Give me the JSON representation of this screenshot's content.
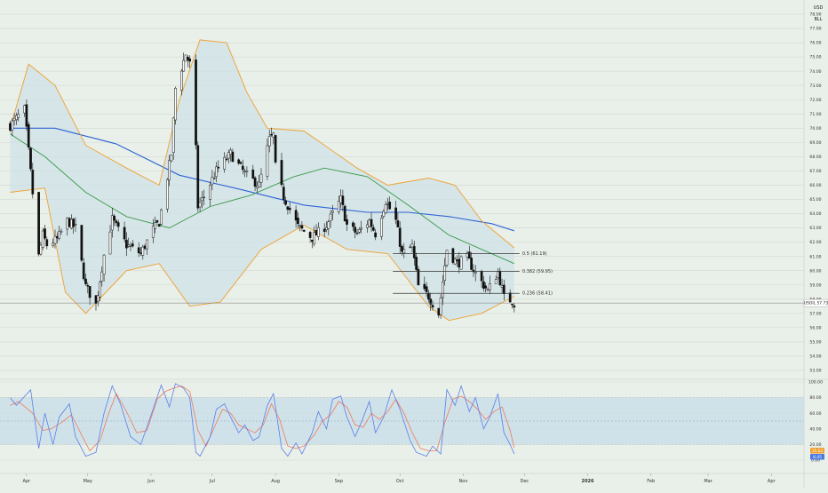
{
  "header": {
    "currency_label": "USD",
    "unit_label": "BLL"
  },
  "chart_data": [
    {
      "type": "candlestick",
      "instrument_label": "USOIL",
      "last_price": 57.73,
      "last_price_text": "57.73",
      "x_labels": [
        "Apr",
        "May",
        "Jun",
        "Jul",
        "Aug",
        "Sep",
        "Oct",
        "Nov",
        "Dec",
        "2026",
        "Feb",
        "Mar",
        "Apr"
      ],
      "x_range": [
        "2025-04-01",
        "2026-04-01"
      ],
      "x_label_dates": [
        "2025-04-01",
        "2025-05-01",
        "2025-06-01",
        "2025-07-01",
        "2025-08-01",
        "2025-09-01",
        "2025-10-01",
        "2025-11-01",
        "2025-12-01",
        "2026-01-01",
        "2026-02-01",
        "2026-03-01",
        "2026-04-01"
      ],
      "y_ticks": [
        53.0,
        54.0,
        55.0,
        56.0,
        57.0,
        58.0,
        59.0,
        60.0,
        61.0,
        62.0,
        63.0,
        64.0,
        65.0,
        66.0,
        67.0,
        68.0,
        69.0,
        70.0,
        71.0,
        72.0,
        73.0,
        74.0,
        75.0,
        76.0,
        77.0,
        78.0
      ],
      "ylim": [
        52.5,
        78.5
      ],
      "grid": true,
      "anchors": [
        [
          "2025-03-24",
          70.2
        ],
        [
          "2025-03-31",
          71.3
        ],
        [
          "2025-04-03",
          66.9
        ],
        [
          "2025-04-07",
          61.0
        ],
        [
          "2025-04-09",
          62.5
        ],
        [
          "2025-04-11",
          61.8
        ],
        [
          "2025-04-16",
          62.2
        ],
        [
          "2025-04-21",
          63.5
        ],
        [
          "2025-04-25",
          63.0
        ],
        [
          "2025-04-30",
          58.9
        ],
        [
          "2025-05-05",
          57.6
        ],
        [
          "2025-05-09",
          61.1
        ],
        [
          "2025-05-13",
          63.6
        ],
        [
          "2025-05-20",
          61.8
        ],
        [
          "2025-05-27",
          61.2
        ],
        [
          "2025-06-02",
          62.9
        ],
        [
          "2025-06-05",
          63.4
        ],
        [
          "2025-06-11",
          68.2
        ],
        [
          "2025-06-13",
          72.8
        ],
        [
          "2025-06-18",
          75.2
        ],
        [
          "2025-06-20",
          74.5
        ],
        [
          "2025-06-23",
          68.5
        ],
        [
          "2025-06-24",
          64.5
        ],
        [
          "2025-06-27",
          65.2
        ],
        [
          "2025-07-03",
          67.0
        ],
        [
          "2025-07-10",
          68.2
        ],
        [
          "2025-07-17",
          66.8
        ],
        [
          "2025-07-24",
          66.0
        ],
        [
          "2025-07-29",
          69.2
        ],
        [
          "2025-07-31",
          69.5
        ],
        [
          "2025-08-01",
          67.3
        ],
        [
          "2025-08-05",
          65.2
        ],
        [
          "2025-08-12",
          63.1
        ],
        [
          "2025-08-19",
          62.3
        ],
        [
          "2025-08-26",
          63.2
        ],
        [
          "2025-09-02",
          65.0
        ],
        [
          "2025-09-05",
          63.2
        ],
        [
          "2025-09-10",
          62.6
        ],
        [
          "2025-09-16",
          63.5
        ],
        [
          "2025-09-19",
          62.6
        ],
        [
          "2025-09-24",
          64.9
        ],
        [
          "2025-09-29",
          63.5
        ],
        [
          "2025-10-02",
          61.2
        ],
        [
          "2025-10-07",
          61.7
        ],
        [
          "2025-10-10",
          58.9
        ],
        [
          "2025-10-15",
          58.2
        ],
        [
          "2025-10-20",
          57.0
        ],
        [
          "2025-10-24",
          61.5
        ],
        [
          "2025-10-29",
          60.5
        ],
        [
          "2025-11-03",
          60.9
        ],
        [
          "2025-11-07",
          59.8
        ],
        [
          "2025-11-13",
          58.6
        ],
        [
          "2025-11-18",
          59.9
        ],
        [
          "2025-11-21",
          58.1
        ],
        [
          "2025-11-25",
          57.9
        ],
        [
          "2025-11-26",
          57.7
        ]
      ],
      "bollinger": {
        "color": "#f0a030",
        "upper": [
          [
            "2025-03-24",
            70.0
          ],
          [
            "2025-04-02",
            74.5
          ],
          [
            "2025-04-15",
            73.0
          ],
          [
            "2025-04-30",
            68.8
          ],
          [
            "2025-05-20",
            67.2
          ],
          [
            "2025-06-05",
            66.0
          ],
          [
            "2025-06-15",
            72.0
          ],
          [
            "2025-06-25",
            76.2
          ],
          [
            "2025-07-08",
            76.0
          ],
          [
            "2025-07-18",
            72.5
          ],
          [
            "2025-07-28",
            70.0
          ],
          [
            "2025-08-15",
            69.8
          ],
          [
            "2025-09-10",
            67.2
          ],
          [
            "2025-09-25",
            66.0
          ],
          [
            "2025-10-15",
            66.5
          ],
          [
            "2025-10-28",
            66.0
          ],
          [
            "2025-11-10",
            63.5
          ],
          [
            "2025-11-26",
            61.6
          ]
        ],
        "middle": [
          [
            "2025-03-24",
            70.0
          ],
          [
            "2025-04-08",
            68.0
          ],
          [
            "2025-04-30",
            64.8
          ],
          [
            "2025-05-25",
            63.6
          ],
          [
            "2025-06-12",
            64.4
          ],
          [
            "2025-06-30",
            67.2
          ],
          [
            "2025-07-20",
            67.5
          ],
          [
            "2025-08-15",
            65.6
          ],
          [
            "2025-09-05",
            64.3
          ],
          [
            "2025-09-30",
            63.0
          ],
          [
            "2025-10-20",
            61.6
          ],
          [
            "2025-11-10",
            60.7
          ],
          [
            "2025-11-26",
            59.5
          ]
        ],
        "lower": [
          [
            "2025-03-24",
            65.5
          ],
          [
            "2025-04-10",
            65.8
          ],
          [
            "2025-04-20",
            58.5
          ],
          [
            "2025-04-30",
            57.0
          ],
          [
            "2025-05-20",
            60.0
          ],
          [
            "2025-06-05",
            60.5
          ],
          [
            "2025-06-20",
            57.5
          ],
          [
            "2025-07-05",
            57.8
          ],
          [
            "2025-07-25",
            61.5
          ],
          [
            "2025-08-15",
            63.2
          ],
          [
            "2025-09-05",
            61.5
          ],
          [
            "2025-09-25",
            61.2
          ],
          [
            "2025-10-15",
            57.5
          ],
          [
            "2025-10-25",
            56.5
          ],
          [
            "2025-11-10",
            57.0
          ],
          [
            "2025-11-26",
            58.2
          ]
        ]
      },
      "sma_green": {
        "color": "#3a9a4a",
        "points": [
          [
            "2025-03-24",
            69.6
          ],
          [
            "2025-04-10",
            68.0
          ],
          [
            "2025-04-30",
            65.5
          ],
          [
            "2025-05-20",
            63.8
          ],
          [
            "2025-06-10",
            63.0
          ],
          [
            "2025-06-30",
            64.5
          ],
          [
            "2025-07-20",
            65.3
          ],
          [
            "2025-08-10",
            66.6
          ],
          [
            "2025-08-25",
            67.2
          ],
          [
            "2025-09-15",
            66.6
          ],
          [
            "2025-10-05",
            64.6
          ],
          [
            "2025-10-25",
            62.5
          ],
          [
            "2025-11-10",
            61.5
          ],
          [
            "2025-11-26",
            60.5
          ]
        ]
      },
      "sma_blue": {
        "color": "#2e63d6",
        "points": [
          [
            "2025-03-24",
            70.0
          ],
          [
            "2025-04-15",
            70.0
          ],
          [
            "2025-05-15",
            68.9
          ],
          [
            "2025-06-15",
            66.7
          ],
          [
            "2025-07-15",
            65.7
          ],
          [
            "2025-08-15",
            64.6
          ],
          [
            "2025-09-15",
            64.1
          ],
          [
            "2025-10-05",
            64.1
          ],
          [
            "2025-10-25",
            63.8
          ],
          [
            "2025-11-15",
            63.3
          ],
          [
            "2025-11-26",
            62.8
          ]
        ]
      },
      "fib_levels": [
        {
          "label": "0.5 (61.19)",
          "value": 61.19
        },
        {
          "label": "0.382 (59.95)",
          "value": 59.95
        },
        {
          "label": "0.236 (58.41)",
          "value": 58.41
        }
      ],
      "fib_range": [
        "2025-10-01",
        "2025-11-26"
      ]
    },
    {
      "type": "line",
      "panel": "stochastic",
      "y_ticks": [
        0.0,
        20.0,
        40.0,
        60.0,
        80.0,
        100.0
      ],
      "ylim": [
        0,
        100
      ],
      "band": [
        20,
        80
      ],
      "current_values": [
        {
          "color": "#f0a030",
          "text": "15.62"
        },
        {
          "color": "#4a7ae0",
          "text": "8.45"
        }
      ],
      "series_k": {
        "color": "#5b7fe8",
        "points": [
          [
            "2025-03-24",
            80
          ],
          [
            "2025-03-27",
            70
          ],
          [
            "2025-04-03",
            90
          ],
          [
            "2025-04-07",
            15
          ],
          [
            "2025-04-10",
            60
          ],
          [
            "2025-04-14",
            20
          ],
          [
            "2025-04-17",
            55
          ],
          [
            "2025-04-22",
            72
          ],
          [
            "2025-04-25",
            30
          ],
          [
            "2025-04-30",
            5
          ],
          [
            "2025-05-05",
            10
          ],
          [
            "2025-05-09",
            60
          ],
          [
            "2025-05-13",
            95
          ],
          [
            "2025-05-17",
            72
          ],
          [
            "2025-05-22",
            30
          ],
          [
            "2025-05-27",
            20
          ],
          [
            "2025-06-02",
            65
          ],
          [
            "2025-06-06",
            96
          ],
          [
            "2025-06-10",
            68
          ],
          [
            "2025-06-13",
            98
          ],
          [
            "2025-06-17",
            92
          ],
          [
            "2025-06-20",
            80
          ],
          [
            "2025-06-23",
            10
          ],
          [
            "2025-06-25",
            5
          ],
          [
            "2025-06-30",
            30
          ],
          [
            "2025-07-03",
            65
          ],
          [
            "2025-07-07",
            72
          ],
          [
            "2025-07-10",
            55
          ],
          [
            "2025-07-14",
            35
          ],
          [
            "2025-07-17",
            45
          ],
          [
            "2025-07-21",
            25
          ],
          [
            "2025-07-24",
            30
          ],
          [
            "2025-07-28",
            70
          ],
          [
            "2025-07-31",
            85
          ],
          [
            "2025-08-04",
            15
          ],
          [
            "2025-08-07",
            5
          ],
          [
            "2025-08-11",
            22
          ],
          [
            "2025-08-14",
            8
          ],
          [
            "2025-08-19",
            35
          ],
          [
            "2025-08-22",
            62
          ],
          [
            "2025-08-26",
            40
          ],
          [
            "2025-08-29",
            78
          ],
          [
            "2025-09-02",
            82
          ],
          [
            "2025-09-05",
            55
          ],
          [
            "2025-09-09",
            30
          ],
          [
            "2025-09-12",
            48
          ],
          [
            "2025-09-16",
            75
          ],
          [
            "2025-09-19",
            35
          ],
          [
            "2025-09-23",
            55
          ],
          [
            "2025-09-27",
            90
          ],
          [
            "2025-10-01",
            65
          ],
          [
            "2025-10-06",
            25
          ],
          [
            "2025-10-09",
            10
          ],
          [
            "2025-10-14",
            5
          ],
          [
            "2025-10-17",
            18
          ],
          [
            "2025-10-21",
            8
          ],
          [
            "2025-10-24",
            90
          ],
          [
            "2025-10-28",
            70
          ],
          [
            "2025-10-31",
            95
          ],
          [
            "2025-11-04",
            62
          ],
          [
            "2025-11-07",
            80
          ],
          [
            "2025-11-11",
            40
          ],
          [
            "2025-11-14",
            55
          ],
          [
            "2025-11-18",
            85
          ],
          [
            "2025-11-21",
            35
          ],
          [
            "2025-11-24",
            20
          ],
          [
            "2025-11-26",
            8
          ]
        ]
      },
      "series_d": {
        "color": "#f07a5a",
        "points": [
          [
            "2025-03-24",
            70
          ],
          [
            "2025-03-28",
            75
          ],
          [
            "2025-04-04",
            60
          ],
          [
            "2025-04-09",
            38
          ],
          [
            "2025-04-13",
            40
          ],
          [
            "2025-04-18",
            48
          ],
          [
            "2025-04-23",
            58
          ],
          [
            "2025-04-28",
            32
          ],
          [
            "2025-05-02",
            12
          ],
          [
            "2025-05-07",
            25
          ],
          [
            "2025-05-11",
            58
          ],
          [
            "2025-05-15",
            85
          ],
          [
            "2025-05-20",
            62
          ],
          [
            "2025-05-25",
            35
          ],
          [
            "2025-05-30",
            38
          ],
          [
            "2025-06-04",
            78
          ],
          [
            "2025-06-08",
            88
          ],
          [
            "2025-06-12",
            92
          ],
          [
            "2025-06-16",
            95
          ],
          [
            "2025-06-20",
            88
          ],
          [
            "2025-06-24",
            38
          ],
          [
            "2025-06-28",
            18
          ],
          [
            "2025-07-02",
            42
          ],
          [
            "2025-07-06",
            65
          ],
          [
            "2025-07-10",
            60
          ],
          [
            "2025-07-14",
            45
          ],
          [
            "2025-07-18",
            40
          ],
          [
            "2025-07-22",
            35
          ],
          [
            "2025-07-26",
            45
          ],
          [
            "2025-07-30",
            72
          ],
          [
            "2025-08-03",
            52
          ],
          [
            "2025-08-07",
            18
          ],
          [
            "2025-08-11",
            15
          ],
          [
            "2025-08-15",
            18
          ],
          [
            "2025-08-20",
            32
          ],
          [
            "2025-08-24",
            50
          ],
          [
            "2025-08-28",
            58
          ],
          [
            "2025-09-01",
            75
          ],
          [
            "2025-09-05",
            68
          ],
          [
            "2025-09-09",
            45
          ],
          [
            "2025-09-13",
            42
          ],
          [
            "2025-09-17",
            60
          ],
          [
            "2025-09-21",
            52
          ],
          [
            "2025-09-25",
            62
          ],
          [
            "2025-09-29",
            78
          ],
          [
            "2025-10-03",
            60
          ],
          [
            "2025-10-07",
            35
          ],
          [
            "2025-10-11",
            15
          ],
          [
            "2025-10-15",
            12
          ],
          [
            "2025-10-19",
            12
          ],
          [
            "2025-10-23",
            48
          ],
          [
            "2025-10-27",
            78
          ],
          [
            "2025-10-31",
            82
          ],
          [
            "2025-11-04",
            75
          ],
          [
            "2025-11-08",
            65
          ],
          [
            "2025-11-12",
            52
          ],
          [
            "2025-11-16",
            62
          ],
          [
            "2025-11-20",
            68
          ],
          [
            "2025-11-24",
            38
          ],
          [
            "2025-11-26",
            16
          ]
        ]
      }
    }
  ]
}
